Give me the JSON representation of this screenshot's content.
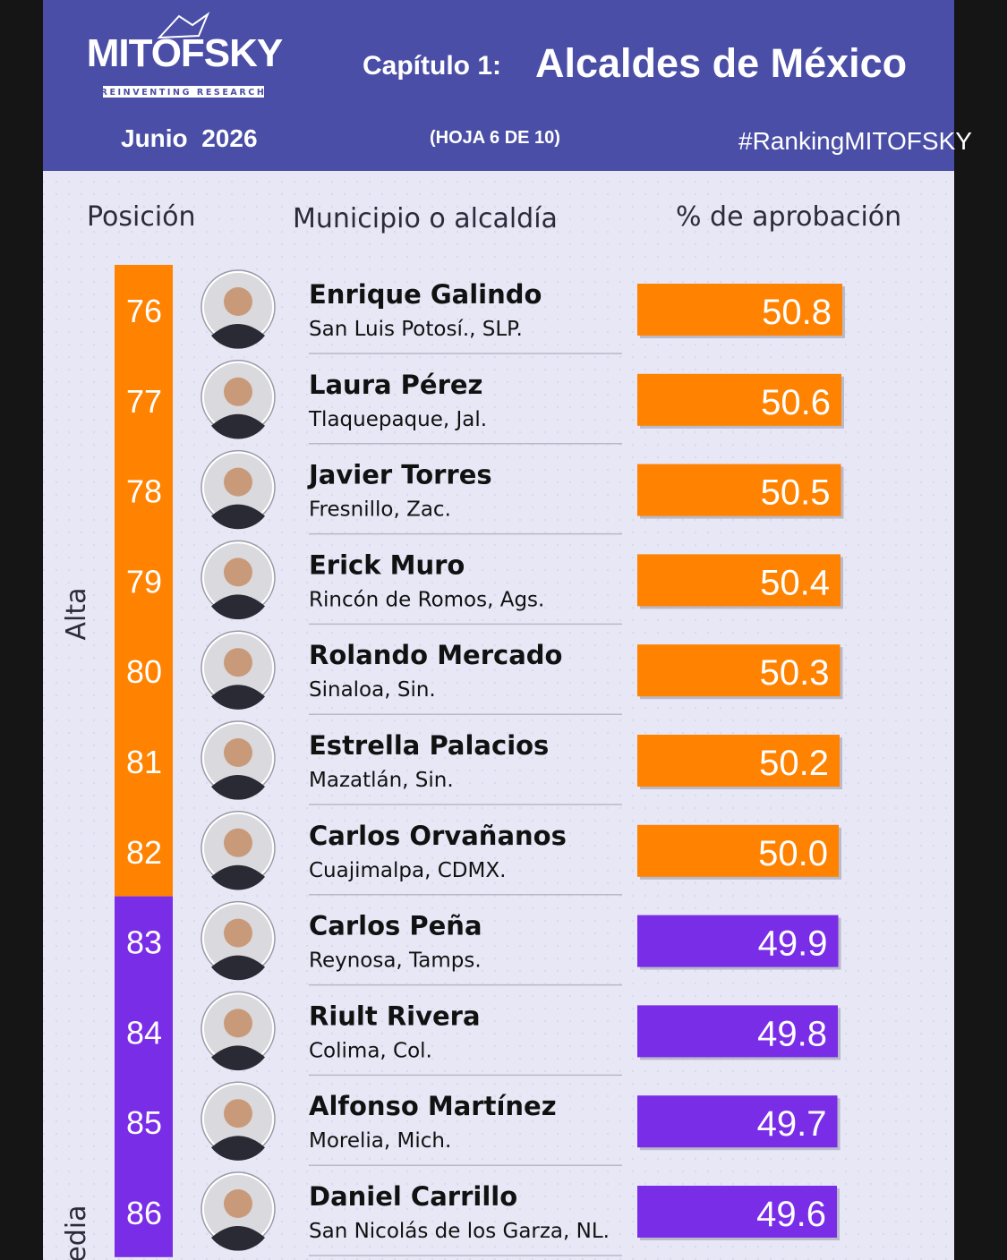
{
  "header": {
    "logo": "MITOFSKY",
    "tagline": "REINVENTING RESEARCH",
    "chapter": "Capítulo 1:",
    "title": "Alcaldes de México",
    "date": "Junio  2026",
    "sheet": "(HOJA 6 DE 10)",
    "hashtag": "#RankingMITOFSKY"
  },
  "columns": [
    "Posición",
    "Municipio o alcaldía",
    "% de aprobación"
  ],
  "bands": [
    {
      "label": "Alta",
      "color": "#ff8200",
      "rows": [
        {
          "position": 76,
          "name": "Enrique Galindo",
          "place": "San Luis Potosí., SLP.",
          "approval": 50.8
        },
        {
          "position": 77,
          "name": "Laura Pérez",
          "place": "Tlaquepaque, Jal.",
          "approval": 50.6
        },
        {
          "position": 78,
          "name": "Javier Torres",
          "place": "Fresnillo, Zac.",
          "approval": 50.5
        },
        {
          "position": 79,
          "name": "Erick Muro",
          "place": "Rincón de Romos, Ags.",
          "approval": 50.4
        },
        {
          "position": 80,
          "name": "Rolando Mercado",
          "place": "Sinaloa, Sin.",
          "approval": 50.3
        },
        {
          "position": 81,
          "name": "Estrella Palacios",
          "place": "Mazatlán, Sin.",
          "approval": 50.2
        },
        {
          "position": 82,
          "name": "Carlos Orvañanos",
          "place": "Cuajimalpa, CDMX.",
          "approval": {
            "value": 50,
            "label": "50.0"
          }
        }
      ]
    },
    {
      "label": "Media",
      "color": "#7a2de6",
      "rows": [
        {
          "position": 83,
          "name": "Carlos Peña",
          "place": "Reynosa, Tamps.",
          "approval": 49.9
        },
        {
          "position": 84,
          "name": "Riult Rivera",
          "place": "Colima, Col.",
          "approval": 49.8
        },
        {
          "position": 85,
          "name": "Alfonso Martínez",
          "place": "Morelia, Mich.",
          "approval": 49.7
        },
        {
          "position": 86,
          "name": "Daniel Carrillo",
          "place": "San Nicolás de los Garza, NL.",
          "approval": 49.6
        }
      ]
    }
  ]
}
